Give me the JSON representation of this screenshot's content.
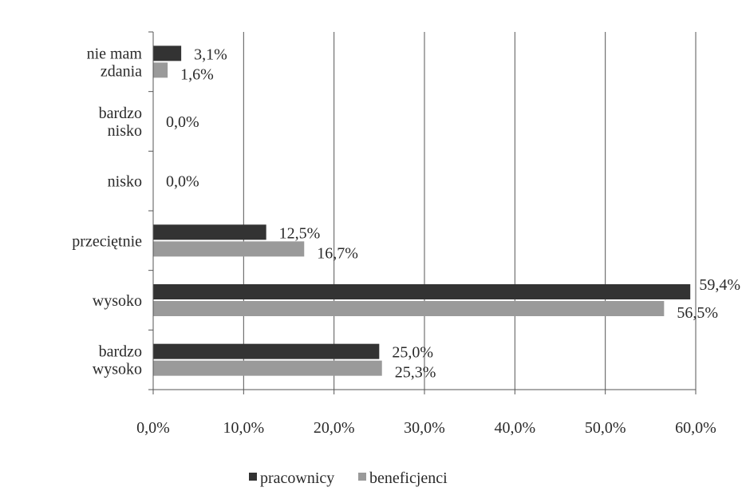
{
  "chart_data": {
    "type": "bar",
    "orientation": "horizontal",
    "categories": [
      [
        "nie mam",
        "zdania"
      ],
      [
        "bardzo",
        "nisko"
      ],
      [
        "nisko"
      ],
      [
        "przeciętnie"
      ],
      [
        "wysoko"
      ],
      [
        "bardzo",
        "wysoko"
      ]
    ],
    "series": [
      {
        "name": "pracownicy",
        "color": "#333333",
        "values": [
          3.1,
          0.0,
          0.0,
          12.5,
          59.4,
          25.0
        ],
        "labels": [
          "3,1%",
          "0,0%",
          "0,0%",
          "12,5%",
          "59,4%",
          "25,0%"
        ]
      },
      {
        "name": "beneficjenci",
        "color": "#9a9a9a",
        "values": [
          1.6,
          0.0,
          0.0,
          16.7,
          56.5,
          25.3
        ],
        "labels": [
          "1,6%",
          "",
          "",
          "16,7%",
          "56,5%",
          "25,3%"
        ]
      }
    ],
    "xlim": [
      0,
      60
    ],
    "xticks": [
      "0,0%",
      "10,0%",
      "20,0%",
      "30,0%",
      "40,0%",
      "50,0%",
      "60,0%"
    ],
    "grid": "vertical",
    "legend": "bottom"
  }
}
